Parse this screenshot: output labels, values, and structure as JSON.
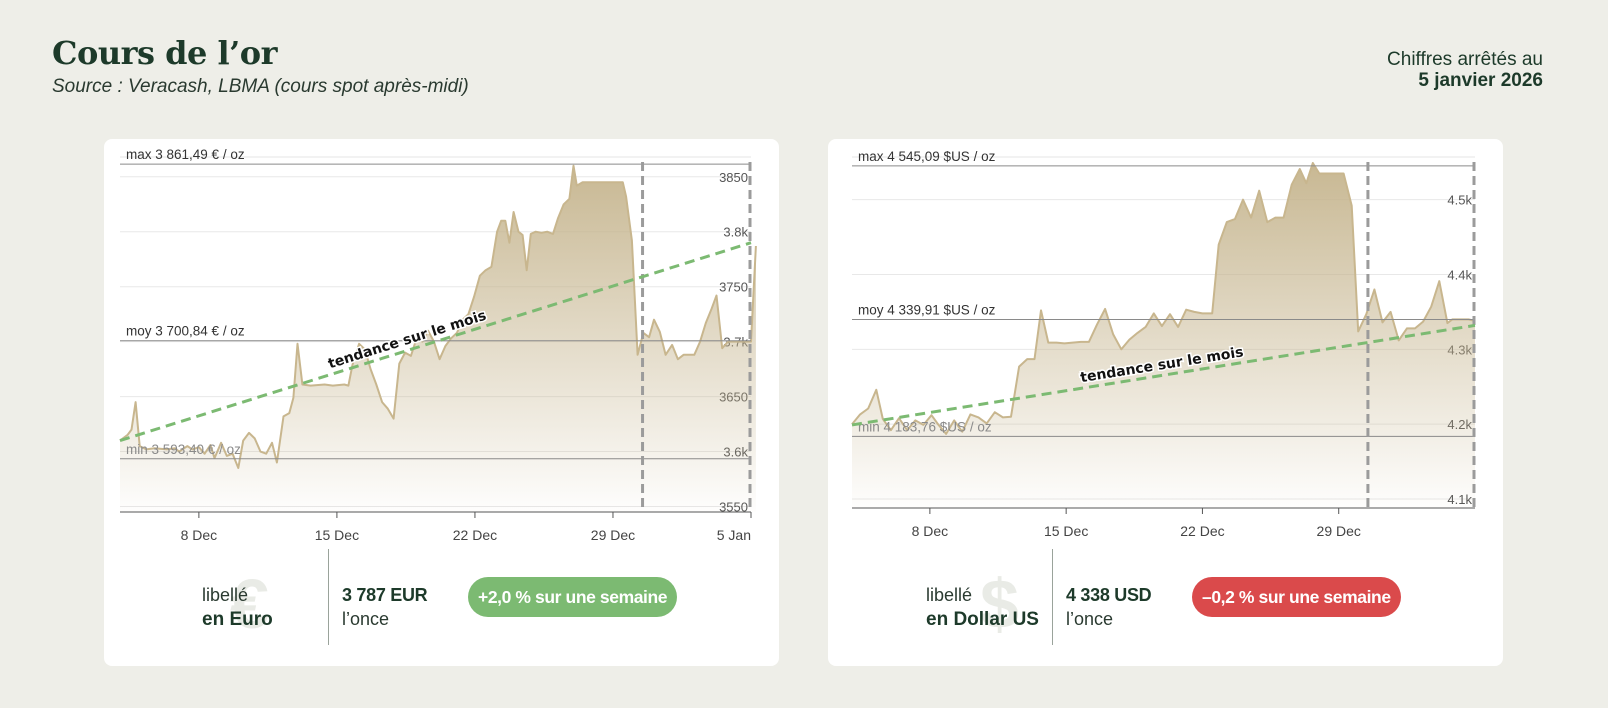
{
  "header": {
    "title": "Cours de l’or",
    "subtitle": "Source : Veracash, LBMA (cours spot après-midi)",
    "asof_label": "Chiffres arrêtés au",
    "asof_date": "5 janvier 2026"
  },
  "colors": {
    "gold_line": "#c8b68e",
    "gold_fill": "#c5b48d",
    "trend": "#7cba72",
    "up": "#7cba72",
    "down": "#da4a4b"
  },
  "euro": {
    "footer": {
      "symbol": "€",
      "label_a": "libellé",
      "label_b": "en Euro",
      "price": "3 787 EUR",
      "unit": "l’once",
      "badge": "+2,0 % sur une semaine"
    },
    "chart_data": {
      "type": "area",
      "series_unit": "EUR/oz",
      "x_start": "2025-12-04",
      "x_end": "2026-01-05",
      "xticks": [
        {
          "date": "2025-12-08",
          "label": "8 Dec"
        },
        {
          "date": "2025-12-15",
          "label": "15 Dec"
        },
        {
          "date": "2025-12-22",
          "label": "22 Dec"
        },
        {
          "date": "2025-12-29",
          "label": "29 Dec"
        },
        {
          "date": "2026-01-05",
          "label": "5 Jan"
        }
      ],
      "ylim": [
        3545,
        3868
      ],
      "yticks": [
        {
          "v": 3550,
          "label": "3550"
        },
        {
          "v": 3600,
          "label": "3.6k"
        },
        {
          "v": 3650,
          "label": "3650"
        },
        {
          "v": 3700,
          "label": "3.7k"
        },
        {
          "v": 3750,
          "label": "3750"
        },
        {
          "v": 3800,
          "label": "3.8k"
        },
        {
          "v": 3850,
          "label": "3850"
        }
      ],
      "hlines": [
        {
          "v": 3861.49,
          "label": "max 3 861,49 € / oz"
        },
        {
          "v": 3700.84,
          "label": "moy 3 700,84 € / oz"
        },
        {
          "v": 3593.4,
          "label": "min 3 593,40 € / oz"
        }
      ],
      "vlines": [
        "2025-12-30T12:00",
        "2026-01-05"
      ],
      "trend": {
        "label": "tendance sur le mois",
        "start": [
          "2025-12-04",
          3610
        ],
        "end": [
          "2026-01-05",
          3790
        ]
      },
      "points": [
        [
          "2025-12-04T00:00",
          3610
        ],
        [
          "2025-12-04T09:00",
          3615
        ],
        [
          "2025-12-04T14:00",
          3620
        ],
        [
          "2025-12-04T19:00",
          3645
        ],
        [
          "2025-12-05T00:00",
          3605
        ],
        [
          "2025-12-05T08:00",
          3602
        ],
        [
          "2025-12-05T18:00",
          3603
        ],
        [
          "2025-12-06T09:00",
          3602
        ],
        [
          "2025-12-06T19:00",
          3603
        ],
        [
          "2025-12-07T00:00",
          3600
        ],
        [
          "2025-12-07T10:00",
          3605
        ],
        [
          "2025-12-07T16:00",
          3602
        ],
        [
          "2025-12-08T00:00",
          3604
        ],
        [
          "2025-12-08T07:00",
          3598
        ],
        [
          "2025-12-08T14:00",
          3606
        ],
        [
          "2025-12-08T19:00",
          3594
        ],
        [
          "2025-12-09T03:00",
          3608
        ],
        [
          "2025-12-09T10:00",
          3596
        ],
        [
          "2025-12-09T17:00",
          3598
        ],
        [
          "2025-12-10T00:00",
          3585
        ],
        [
          "2025-12-10T06:00",
          3610
        ],
        [
          "2025-12-10T13:00",
          3617
        ],
        [
          "2025-12-10T20:00",
          3612
        ],
        [
          "2025-12-11T03:00",
          3600
        ],
        [
          "2025-12-11T10:00",
          3598
        ],
        [
          "2025-12-11T17:00",
          3608
        ],
        [
          "2025-12-11T23:00",
          3590
        ],
        [
          "2025-12-12T07:00",
          3632
        ],
        [
          "2025-12-12T14:00",
          3635
        ],
        [
          "2025-12-12T19:00",
          3649
        ],
        [
          "2025-12-13T00:00",
          3698
        ],
        [
          "2025-12-13T06:00",
          3661
        ],
        [
          "2025-12-13T16:00",
          3660
        ],
        [
          "2025-12-14T09:00",
          3661
        ],
        [
          "2025-12-14T19:00",
          3660
        ],
        [
          "2025-12-15T09:00",
          3661
        ],
        [
          "2025-12-15T14:00",
          3660
        ],
        [
          "2025-12-15T19:00",
          3679
        ],
        [
          "2025-12-16T03:00",
          3698
        ],
        [
          "2025-12-16T10:00",
          3693
        ],
        [
          "2025-12-16T17:00",
          3675
        ],
        [
          "2025-12-17T00:00",
          3661
        ],
        [
          "2025-12-17T07:00",
          3645
        ],
        [
          "2025-12-17T14:00",
          3639
        ],
        [
          "2025-12-17T21:00",
          3630
        ],
        [
          "2025-12-18T04:00",
          3680
        ],
        [
          "2025-12-18T11:00",
          3690
        ],
        [
          "2025-12-18T18:00",
          3687
        ],
        [
          "2025-12-19T01:00",
          3703
        ],
        [
          "2025-12-19T08:00",
          3700
        ],
        [
          "2025-12-19T15:00",
          3710
        ],
        [
          "2025-12-19T22:00",
          3700
        ],
        [
          "2025-12-20T05:00",
          3684
        ],
        [
          "2025-12-20T12:00",
          3696
        ],
        [
          "2025-12-20T19:00",
          3703
        ],
        [
          "2025-12-21T02:00",
          3708
        ],
        [
          "2025-12-21T09:00",
          3720
        ],
        [
          "2025-12-21T16:00",
          3725
        ],
        [
          "2025-12-21T23:00",
          3741
        ],
        [
          "2025-12-22T06:00",
          3760
        ],
        [
          "2025-12-22T13:00",
          3765
        ],
        [
          "2025-12-22T20:00",
          3768
        ],
        [
          "2025-12-23T03:00",
          3800
        ],
        [
          "2025-12-23T08:00",
          3810
        ],
        [
          "2025-12-23T13:00",
          3810
        ],
        [
          "2025-12-23T18:00",
          3790
        ],
        [
          "2025-12-23T23:00",
          3818
        ],
        [
          "2025-12-24T05:00",
          3800
        ],
        [
          "2025-12-24T10:00",
          3797
        ],
        [
          "2025-12-24T15:00",
          3765
        ],
        [
          "2025-12-24T20:00",
          3798
        ],
        [
          "2025-12-25T02:00",
          3800
        ],
        [
          "2025-12-25T09:00",
          3799
        ],
        [
          "2025-12-25T16:00",
          3800
        ],
        [
          "2025-12-25T23:00",
          3798
        ],
        [
          "2025-12-26T05:00",
          3812
        ],
        [
          "2025-12-26T12:00",
          3825
        ],
        [
          "2025-12-26T19:00",
          3830
        ],
        [
          "2025-12-27T00:00",
          3860
        ],
        [
          "2025-12-27T04:00",
          3842
        ],
        [
          "2025-12-27T11:00",
          3845
        ],
        [
          "2025-12-27T18:00",
          3845
        ],
        [
          "2025-12-28T01:00",
          3845
        ],
        [
          "2025-12-28T08:00",
          3845
        ],
        [
          "2025-12-28T15:00",
          3845
        ],
        [
          "2025-12-28T22:00",
          3845
        ],
        [
          "2025-12-29T05:00",
          3845
        ],
        [
          "2025-12-29T12:00",
          3845
        ],
        [
          "2025-12-29T16:00",
          3832
        ],
        [
          "2025-12-29T23:00",
          3792
        ],
        [
          "2025-12-30T06:00",
          3688
        ],
        [
          "2025-12-30T13:00",
          3708
        ],
        [
          "2025-12-30T20:00",
          3704
        ],
        [
          "2025-12-31T02:00",
          3720
        ],
        [
          "2025-12-31T09:00",
          3709
        ],
        [
          "2025-12-31T16:00",
          3688
        ],
        [
          "2026-01-01T00:00",
          3697
        ],
        [
          "2026-01-01T07:00",
          3684
        ],
        [
          "2026-01-01T14:00",
          3688
        ],
        [
          "2026-01-01T21:00",
          3688
        ],
        [
          "2026-01-02T03:00",
          3688
        ],
        [
          "2026-01-02T10:00",
          3700
        ],
        [
          "2026-01-02T17:00",
          3717
        ],
        [
          "2026-01-03T00:00",
          3730
        ],
        [
          "2026-01-03T06:00",
          3742
        ],
        [
          "2026-01-03T13:00",
          3694
        ],
        [
          "2026-01-03T20:00",
          3700
        ],
        [
          "2026-01-04T03:00",
          3700
        ],
        [
          "2026-01-04T10:00",
          3700
        ],
        [
          "2026-01-04T17:00",
          3700
        ],
        [
          "2026-01-05T00:00",
          3700
        ],
        [
          "2026-01-05T06:00",
          3787
        ]
      ]
    }
  },
  "usd": {
    "footer": {
      "symbol": "$",
      "label_a": "libellé",
      "label_b": "en Dollar US",
      "price": "4 338 USD",
      "unit": "l’once",
      "badge": "–0,2 % sur une semaine"
    },
    "chart_data": {
      "type": "area",
      "series_unit": "USD/oz",
      "x_start": "2025-12-04",
      "x_end": "2026-01-05",
      "xticks": [
        {
          "date": "2025-12-08",
          "label": "8 Dec"
        },
        {
          "date": "2025-12-15",
          "label": "15 Dec"
        },
        {
          "date": "2025-12-22",
          "label": "22 Dec"
        },
        {
          "date": "2025-12-29",
          "label": "29 Dec"
        }
      ],
      "ylim": [
        4088,
        4557
      ],
      "yticks": [
        {
          "v": 4100,
          "label": "4.1k"
        },
        {
          "v": 4200,
          "label": "4.2k"
        },
        {
          "v": 4300,
          "label": "4.3k"
        },
        {
          "v": 4400,
          "label": "4.4k"
        },
        {
          "v": 4500,
          "label": "4.5k"
        }
      ],
      "hlines": [
        {
          "v": 4545.09,
          "label": "max 4 545,09 $US / oz"
        },
        {
          "v": 4339.91,
          "label": "moy 4 339,91 $US / oz"
        },
        {
          "v": 4183.76,
          "label": "min 4 183,76 $US / oz"
        }
      ],
      "vlines": [
        "2025-12-30T12:00",
        "2026-01-05"
      ],
      "trend": {
        "label": "tendance sur le mois",
        "start": [
          "2025-12-04",
          4199
        ],
        "end": [
          "2026-01-05",
          4332
        ]
      },
      "points": [
        [
          "2025-12-04T00:00",
          4200
        ],
        [
          "2025-12-04T10:00",
          4213
        ],
        [
          "2025-12-04T20:00",
          4221
        ],
        [
          "2025-12-05T06:00",
          4246
        ],
        [
          "2025-12-05T14:00",
          4207
        ],
        [
          "2025-12-06T00:00",
          4192
        ],
        [
          "2025-12-06T10:00",
          4208
        ],
        [
          "2025-12-06T20:00",
          4192
        ],
        [
          "2025-12-07T06:00",
          4205
        ],
        [
          "2025-12-07T16:00",
          4199
        ],
        [
          "2025-12-08T02:00",
          4212
        ],
        [
          "2025-12-08T10:00",
          4200
        ],
        [
          "2025-12-08T20:00",
          4187
        ],
        [
          "2025-12-09T06:00",
          4205
        ],
        [
          "2025-12-09T16:00",
          4190
        ],
        [
          "2025-12-10T02:00",
          4213
        ],
        [
          "2025-12-10T12:00",
          4209
        ],
        [
          "2025-12-10T22:00",
          4201
        ],
        [
          "2025-12-11T08:00",
          4216
        ],
        [
          "2025-12-11T18:00",
          4209
        ],
        [
          "2025-12-12T04:00",
          4210
        ],
        [
          "2025-12-12T14:00",
          4277
        ],
        [
          "2025-12-13T00:00",
          4287
        ],
        [
          "2025-12-13T09:00",
          4287
        ],
        [
          "2025-12-13T17:00",
          4352
        ],
        [
          "2025-12-14T02:00",
          4309
        ],
        [
          "2025-12-14T12:00",
          4309
        ],
        [
          "2025-12-14T22:00",
          4308
        ],
        [
          "2025-12-15T08:00",
          4309
        ],
        [
          "2025-12-15T18:00",
          4310
        ],
        [
          "2025-12-16T04:00",
          4310
        ],
        [
          "2025-12-16T14:00",
          4333
        ],
        [
          "2025-12-17T00:00",
          4354
        ],
        [
          "2025-12-17T10:00",
          4320
        ],
        [
          "2025-12-17T20:00",
          4300
        ],
        [
          "2025-12-18T06:00",
          4313
        ],
        [
          "2025-12-18T16:00",
          4322
        ],
        [
          "2025-12-19T02:00",
          4330
        ],
        [
          "2025-12-19T12:00",
          4348
        ],
        [
          "2025-12-19T22:00",
          4331
        ],
        [
          "2025-12-20T08:00",
          4347
        ],
        [
          "2025-12-20T18:00",
          4330
        ],
        [
          "2025-12-21T04:00",
          4353
        ],
        [
          "2025-12-21T14:00",
          4350
        ],
        [
          "2025-12-22T00:00",
          4348
        ],
        [
          "2025-12-22T12:00",
          4348
        ],
        [
          "2025-12-22T20:00",
          4440
        ],
        [
          "2025-12-23T06:00",
          4470
        ],
        [
          "2025-12-23T16:00",
          4474
        ],
        [
          "2025-12-24T02:00",
          4500
        ],
        [
          "2025-12-24T12:00",
          4476
        ],
        [
          "2025-12-24T22:00",
          4512
        ],
        [
          "2025-12-25T08:00",
          4470
        ],
        [
          "2025-12-25T18:00",
          4476
        ],
        [
          "2025-12-26T04:00",
          4476
        ],
        [
          "2025-12-26T14:00",
          4520
        ],
        [
          "2025-12-27T00:00",
          4541
        ],
        [
          "2025-12-27T08:00",
          4522
        ],
        [
          "2025-12-27T16:00",
          4549
        ],
        [
          "2025-12-28T00:00",
          4535
        ],
        [
          "2025-12-28T10:00",
          4535
        ],
        [
          "2025-12-28T20:00",
          4535
        ],
        [
          "2025-12-29T06:00",
          4535
        ],
        [
          "2025-12-29T16:00",
          4492
        ],
        [
          "2025-12-30T00:00",
          4324
        ],
        [
          "2025-12-30T10:00",
          4347
        ],
        [
          "2025-12-30T20:00",
          4380
        ],
        [
          "2025-12-31T06:00",
          4336
        ],
        [
          "2025-12-31T16:00",
          4350
        ],
        [
          "2026-01-01T02:00",
          4312
        ],
        [
          "2026-01-01T12:00",
          4328
        ],
        [
          "2026-01-01T22:00",
          4328
        ],
        [
          "2026-01-02T08:00",
          4337
        ],
        [
          "2026-01-02T18:00",
          4357
        ],
        [
          "2026-01-03T04:00",
          4391
        ],
        [
          "2026-01-03T14:00",
          4335
        ],
        [
          "2026-01-03T20:00",
          4340
        ],
        [
          "2026-01-04T06:00",
          4340
        ],
        [
          "2026-01-04T16:00",
          4340
        ],
        [
          "2026-01-05T00:00",
          4338
        ]
      ]
    }
  }
}
